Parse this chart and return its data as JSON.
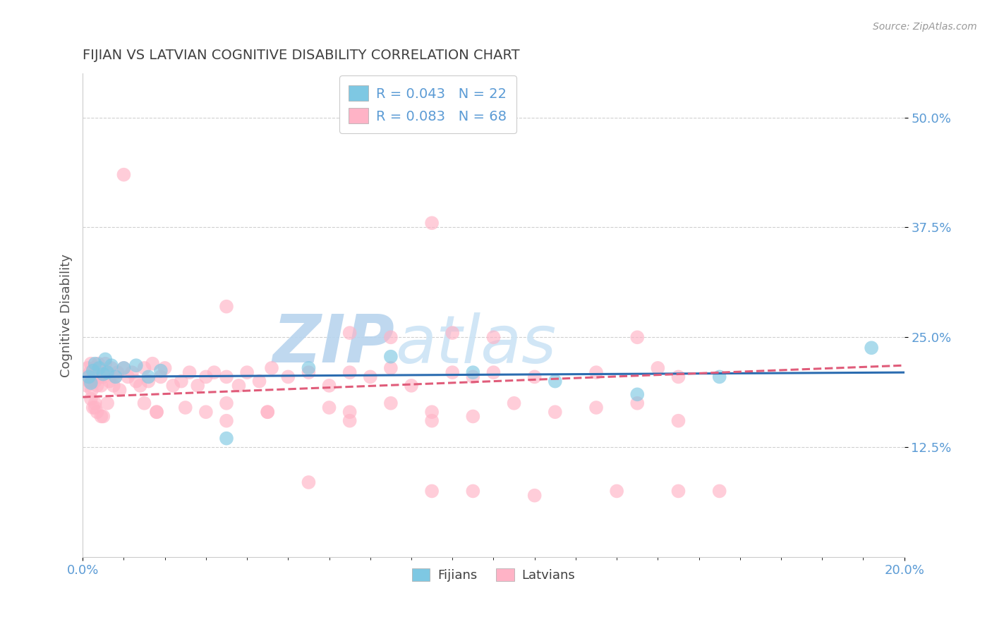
{
  "title": "FIJIAN VS LATVIAN COGNITIVE DISABILITY CORRELATION CHART",
  "source": "Source: ZipAtlas.com",
  "xlim": [
    0.0,
    20.0
  ],
  "ylim": [
    0.0,
    55.0
  ],
  "ytick_positions": [
    12.5,
    25.0,
    37.5,
    50.0
  ],
  "xtick_positions": [
    0.0,
    20.0
  ],
  "fijian_color": "#7ec8e3",
  "latvian_color": "#ffb3c6",
  "fijian_line_color": "#2b6cb0",
  "latvian_line_color": "#e05c7a",
  "fijian_R": "0.043",
  "fijian_N": "22",
  "latvian_R": "0.083",
  "latvian_N": "68",
  "legend_label_fijian": "Fijians",
  "legend_label_latvian": "Latvians",
  "ylabel": "Cognitive Disability",
  "background_color": "#ffffff",
  "grid_color": "#d0d0d0",
  "title_color": "#404040",
  "axis_label_color": "#555555",
  "tick_label_color": "#5b9bd5",
  "legend_text_color": "#5b9bd5",
  "watermark_zip": "ZIP",
  "watermark_atlas": "atlas",
  "watermark_color": "#cce0f5",
  "fijian_x": [
    0.15,
    0.2,
    0.25,
    0.3,
    0.4,
    0.5,
    0.55,
    0.6,
    0.7,
    0.8,
    1.0,
    1.3,
    1.6,
    1.9,
    3.5,
    5.5,
    7.5,
    9.5,
    11.5,
    13.5,
    15.5,
    19.2
  ],
  "fijian_y": [
    20.5,
    19.8,
    21.2,
    22.0,
    21.5,
    20.8,
    22.5,
    21.0,
    21.8,
    20.5,
    21.5,
    21.8,
    20.5,
    21.2,
    13.5,
    21.5,
    22.8,
    21.0,
    20.0,
    18.5,
    20.5,
    23.8
  ],
  "latvian_x": [
    0.08,
    0.1,
    0.12,
    0.15,
    0.18,
    0.2,
    0.22,
    0.25,
    0.28,
    0.3,
    0.32,
    0.35,
    0.38,
    0.4,
    0.42,
    0.45,
    0.5,
    0.55,
    0.6,
    0.65,
    0.7,
    0.75,
    0.8,
    0.85,
    0.9,
    1.0,
    1.1,
    1.2,
    1.3,
    1.4,
    1.5,
    1.6,
    1.7,
    1.9,
    2.0,
    2.2,
    2.4,
    2.6,
    2.8,
    3.0,
    3.2,
    3.5,
    3.8,
    4.0,
    4.3,
    4.6,
    5.0,
    5.5,
    6.0,
    6.5,
    7.0,
    7.5,
    8.0,
    9.0,
    9.5,
    10.0,
    11.0,
    12.5,
    14.0,
    14.5,
    0.35,
    0.25,
    0.5,
    0.6,
    0.45,
    1.5,
    1.8,
    0.3
  ],
  "latvian_y": [
    20.5,
    19.5,
    21.5,
    20.0,
    21.0,
    22.0,
    19.0,
    20.5,
    21.5,
    20.0,
    21.0,
    19.5,
    22.0,
    20.5,
    21.0,
    19.5,
    20.5,
    22.0,
    21.0,
    20.0,
    21.5,
    19.5,
    20.5,
    21.0,
    19.0,
    21.5,
    20.5,
    21.0,
    20.0,
    19.5,
    21.5,
    20.0,
    22.0,
    20.5,
    21.5,
    19.5,
    20.0,
    21.0,
    19.5,
    20.5,
    21.0,
    20.5,
    19.5,
    21.0,
    20.0,
    21.5,
    20.5,
    21.0,
    19.5,
    21.0,
    20.5,
    21.5,
    19.5,
    21.0,
    20.5,
    21.0,
    20.5,
    21.0,
    21.5,
    20.5,
    16.5,
    17.0,
    16.0,
    17.5,
    16.0,
    17.5,
    16.5,
    17.0
  ],
  "latvian_outlier_x": [
    0.2,
    0.3,
    1.8,
    2.5,
    3.0,
    3.5,
    4.5,
    5.5,
    6.0,
    6.5,
    7.5,
    8.5,
    8.5,
    9.5,
    10.5,
    11.5,
    12.5,
    13.5,
    14.5,
    15.5,
    3.5,
    6.5,
    8.5,
    14.5,
    4.5,
    11.0
  ],
  "latvian_outlier_y": [
    18.0,
    17.5,
    16.5,
    17.0,
    16.5,
    17.5,
    16.5,
    8.5,
    17.0,
    16.5,
    17.5,
    16.5,
    7.5,
    16.0,
    17.5,
    16.5,
    17.0,
    17.5,
    7.5,
    7.5,
    15.5,
    15.5,
    15.5,
    15.5,
    16.5,
    7.0
  ],
  "extra_latvian_x": [
    1.0,
    3.5,
    6.5,
    7.5,
    8.5,
    9.0,
    9.5,
    10.0,
    13.0,
    13.5
  ],
  "extra_latvian_y": [
    43.5,
    28.5,
    25.5,
    25.0,
    38.0,
    25.5,
    7.5,
    25.0,
    7.5,
    25.0
  ]
}
